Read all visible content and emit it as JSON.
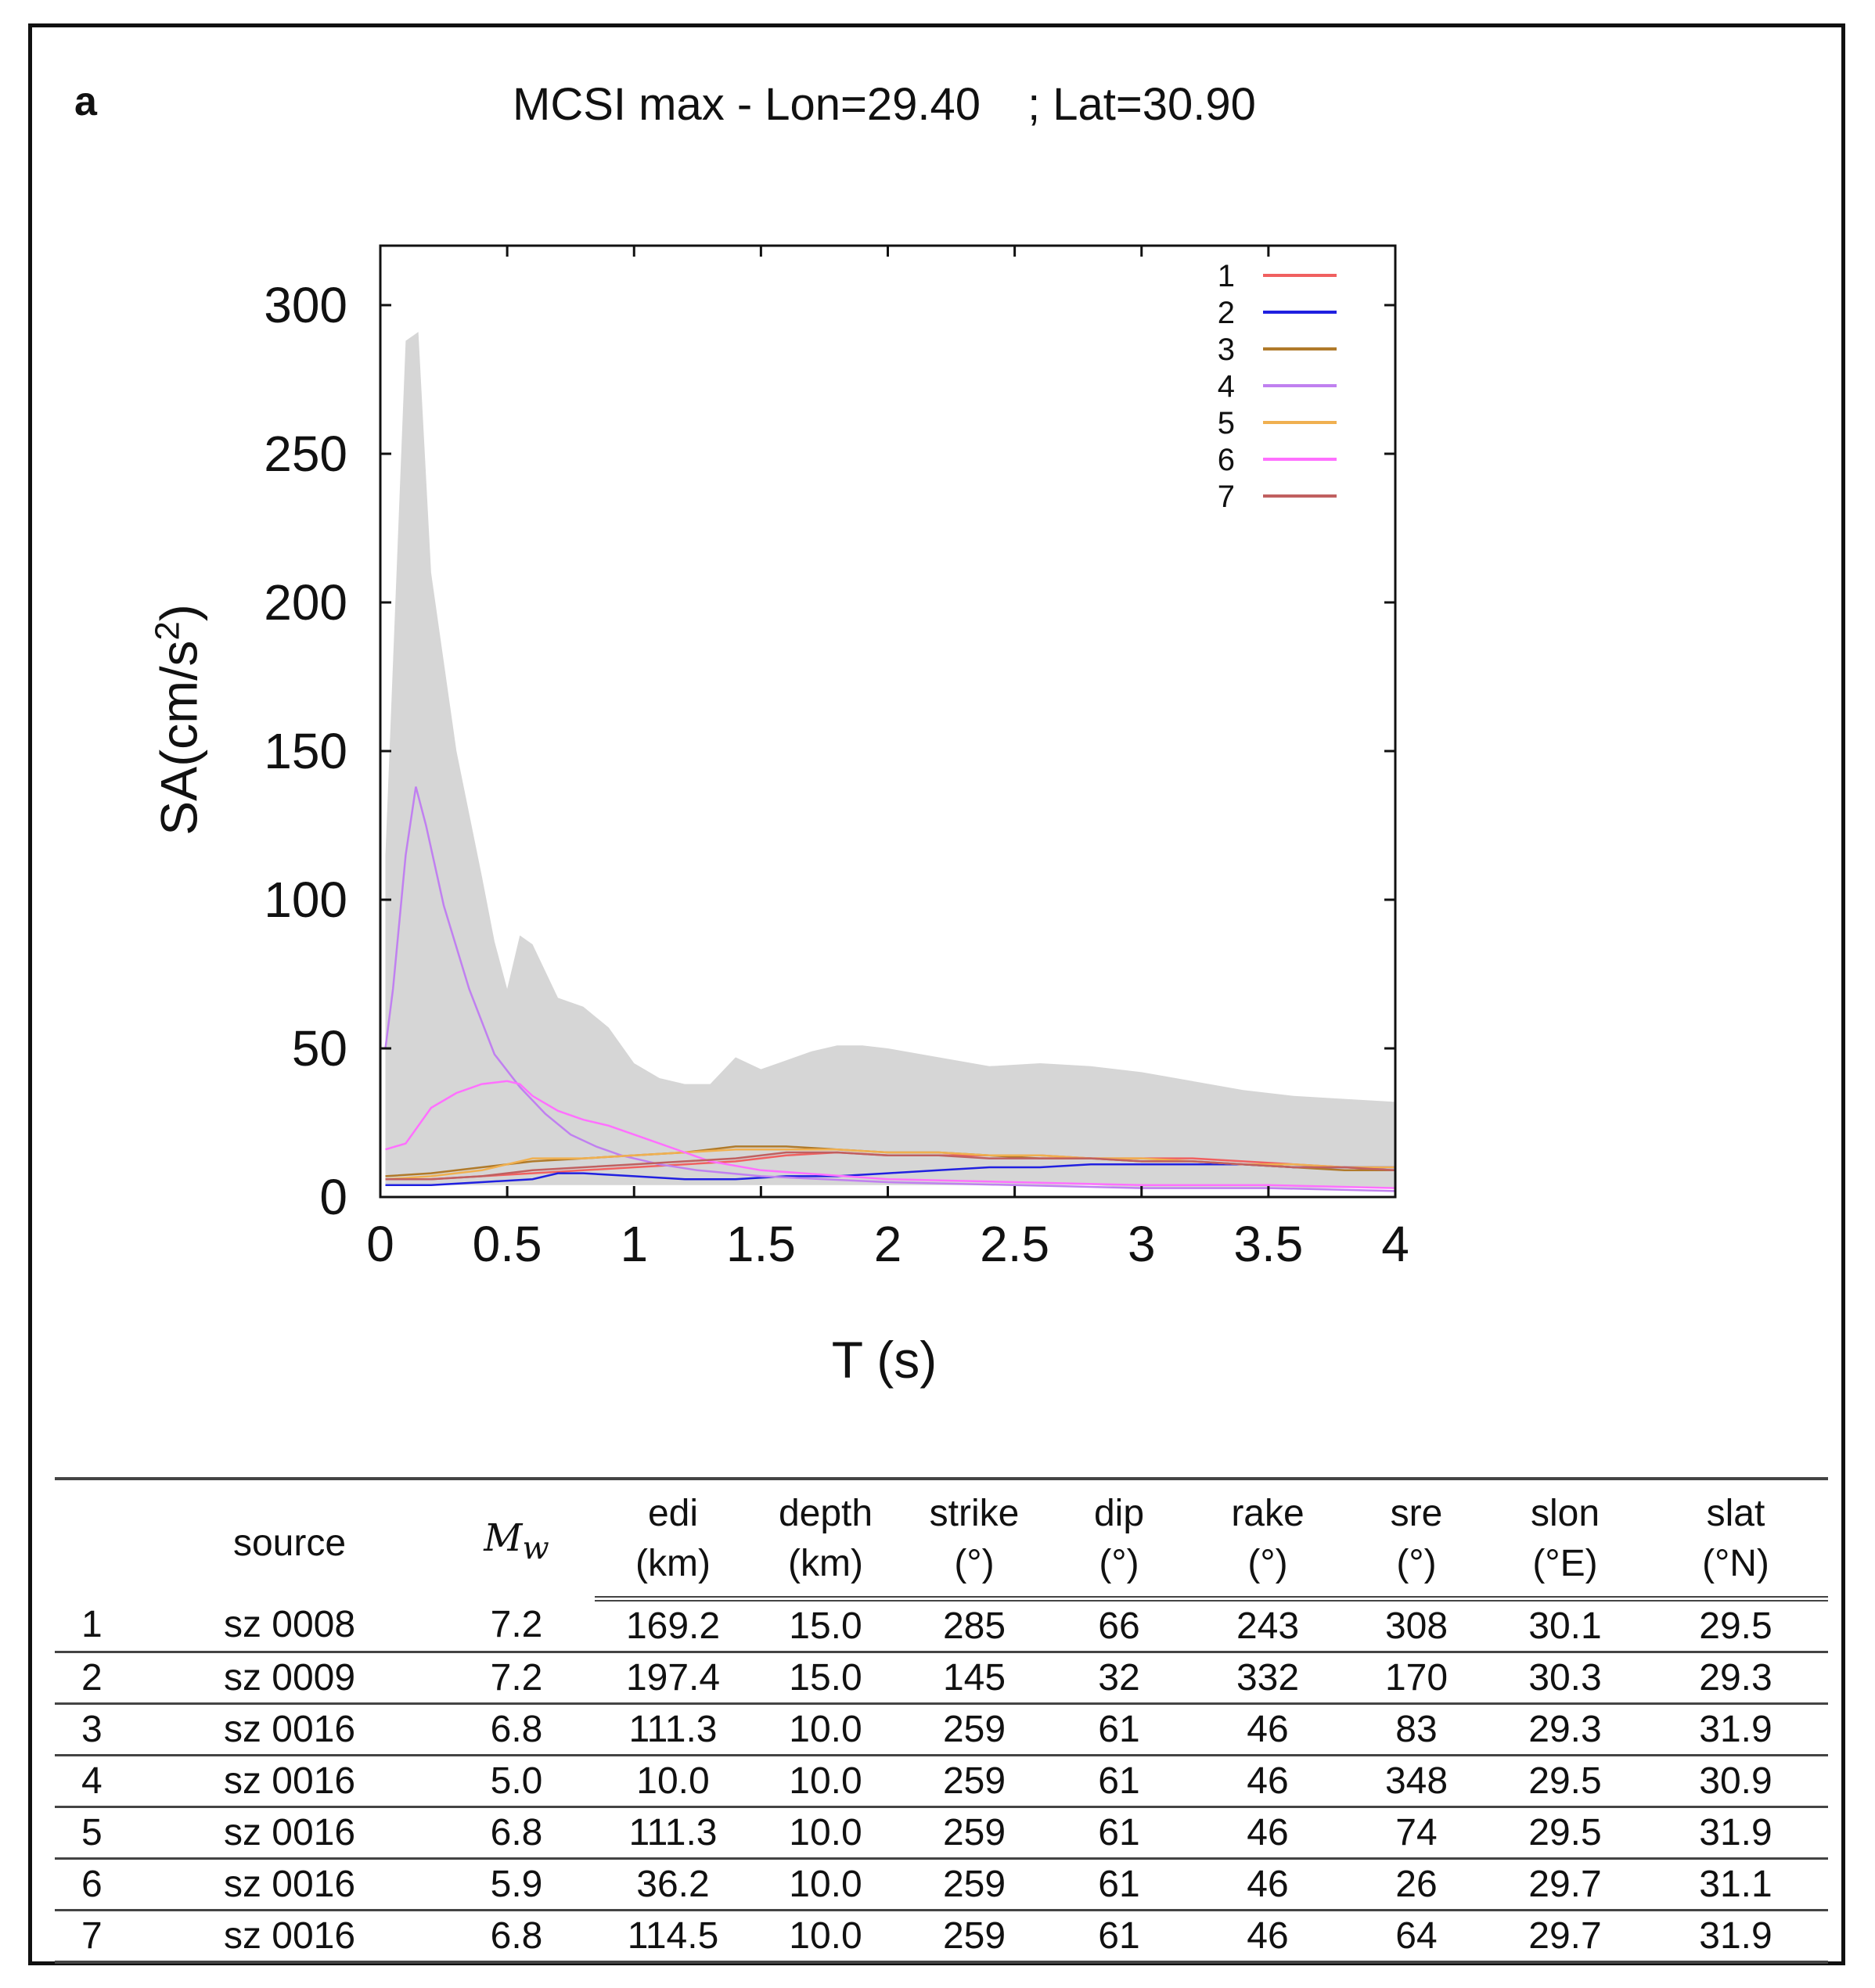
{
  "figure": {
    "panel_label": "a",
    "title_left": "MCSI max - Lon=29.40",
    "title_right": "; Lat=30.90"
  },
  "colors": {
    "envelope": "#d6d6d6",
    "series": [
      "#f06060",
      "#2020e0",
      "#b07a2a",
      "#c080f0",
      "#f0b050",
      "#ff70ff",
      "#c06060"
    ]
  },
  "chart_data": {
    "type": "line",
    "title": "MCSI max - Lon=29.40 ; Lat=30.90",
    "xlabel": "T (s)",
    "ylabel_main": "SA(cm/s",
    "ylabel_sup": "2",
    "ylabel_end": ")",
    "xlim": [
      0,
      4
    ],
    "ylim": [
      0,
      320
    ],
    "xticks": [
      0,
      0.5,
      1,
      1.5,
      2,
      2.5,
      3,
      3.5,
      4
    ],
    "xtick_labels": [
      "0",
      "0.5",
      "1",
      "1.5",
      "2",
      "2.5",
      "3",
      "3.5",
      "4"
    ],
    "yticks": [
      0,
      50,
      100,
      150,
      200,
      250,
      300
    ],
    "ytick_labels": [
      "0",
      "50",
      "100",
      "150",
      "200",
      "250",
      "300"
    ],
    "legend_position": "top-right",
    "envelope": {
      "name": "range",
      "x": [
        0.02,
        0.1,
        0.15,
        0.2,
        0.3,
        0.4,
        0.45,
        0.5,
        0.55,
        0.6,
        0.7,
        0.8,
        0.9,
        1.0,
        1.1,
        1.2,
        1.3,
        1.4,
        1.5,
        1.6,
        1.7,
        1.8,
        1.9,
        2.0,
        2.2,
        2.4,
        2.6,
        2.8,
        3.0,
        3.2,
        3.4,
        3.6,
        3.8,
        4.0
      ],
      "upper": [
        115,
        288,
        291,
        210,
        150,
        108,
        86,
        70,
        88,
        85,
        67,
        64,
        57,
        45,
        40,
        38,
        38,
        47,
        43,
        46,
        49,
        51,
        51,
        50,
        47,
        44,
        45,
        44,
        42,
        39,
        36,
        34,
        33,
        32
      ],
      "lower": [
        4,
        4,
        4,
        4,
        4,
        4,
        4,
        4,
        4,
        4,
        4,
        4,
        4,
        4,
        4,
        4,
        4,
        4,
        4,
        4,
        4,
        4,
        4,
        4,
        4,
        4,
        4,
        4,
        3,
        3,
        3,
        3,
        3,
        3
      ]
    },
    "series": [
      {
        "name": "1",
        "x": [
          0.02,
          0.2,
          0.4,
          0.6,
          0.8,
          1.0,
          1.2,
          1.4,
          1.6,
          1.8,
          2.0,
          2.2,
          2.4,
          2.6,
          2.8,
          3.0,
          3.2,
          3.4,
          3.6,
          3.8,
          4.0
        ],
        "values": [
          6,
          6,
          7,
          8,
          9,
          10,
          11,
          12,
          14,
          15,
          14,
          14,
          14,
          14,
          13,
          13,
          13,
          12,
          11,
          10,
          9
        ]
      },
      {
        "name": "2",
        "x": [
          0.02,
          0.2,
          0.4,
          0.6,
          0.7,
          0.8,
          1.0,
          1.2,
          1.4,
          1.6,
          1.8,
          2.0,
          2.2,
          2.4,
          2.6,
          2.8,
          3.0,
          3.2,
          3.4,
          3.6,
          3.8,
          4.0
        ],
        "values": [
          4,
          4,
          5,
          6,
          8,
          8,
          7,
          6,
          6,
          7,
          7,
          8,
          9,
          10,
          10,
          11,
          11,
          11,
          11,
          10,
          10,
          10
        ]
      },
      {
        "name": "3",
        "x": [
          0.02,
          0.2,
          0.4,
          0.6,
          0.8,
          1.0,
          1.2,
          1.4,
          1.6,
          1.8,
          2.0,
          2.2,
          2.4,
          2.6,
          2.8,
          3.0,
          3.2,
          3.4,
          3.6,
          3.8,
          4.0
        ],
        "values": [
          7,
          8,
          10,
          12,
          13,
          14,
          15,
          17,
          17,
          16,
          15,
          15,
          14,
          13,
          13,
          12,
          12,
          11,
          10,
          9,
          9
        ]
      },
      {
        "name": "4",
        "x": [
          0.02,
          0.05,
          0.1,
          0.14,
          0.18,
          0.25,
          0.35,
          0.45,
          0.55,
          0.65,
          0.75,
          0.85,
          0.95,
          1.1,
          1.25,
          1.5,
          2.0,
          2.5,
          3.0,
          3.5,
          4.0
        ],
        "values": [
          50,
          70,
          115,
          138,
          125,
          98,
          70,
          48,
          37,
          28,
          21,
          17,
          14,
          11,
          9,
          7,
          5,
          4,
          3,
          3,
          2
        ]
      },
      {
        "name": "5",
        "x": [
          0.02,
          0.2,
          0.4,
          0.6,
          0.8,
          1.0,
          1.2,
          1.4,
          1.6,
          1.8,
          2.0,
          2.2,
          2.4,
          2.6,
          2.8,
          3.0,
          3.2,
          3.4,
          3.6,
          3.8,
          4.0
        ],
        "values": [
          6,
          7,
          9,
          13,
          13,
          14,
          15,
          16,
          16,
          16,
          15,
          15,
          14,
          14,
          13,
          13,
          12,
          11,
          11,
          10,
          10
        ]
      },
      {
        "name": "6",
        "x": [
          0.02,
          0.1,
          0.2,
          0.3,
          0.4,
          0.5,
          0.55,
          0.6,
          0.7,
          0.8,
          0.9,
          1.0,
          1.1,
          1.2,
          1.3,
          1.5,
          2.0,
          2.5,
          3.0,
          3.5,
          4.0
        ],
        "values": [
          16,
          18,
          30,
          35,
          38,
          39,
          38,
          34,
          29,
          26,
          24,
          21,
          18,
          15,
          12,
          9,
          6,
          5,
          4,
          4,
          3
        ]
      },
      {
        "name": "7",
        "x": [
          0.02,
          0.2,
          0.4,
          0.6,
          0.8,
          1.0,
          1.2,
          1.4,
          1.6,
          1.8,
          2.0,
          2.2,
          2.4,
          2.6,
          2.8,
          3.0,
          3.2,
          3.4,
          3.6,
          3.8,
          4.0
        ],
        "values": [
          6,
          6,
          7,
          9,
          10,
          11,
          12,
          13,
          15,
          15,
          14,
          14,
          13,
          13,
          13,
          12,
          12,
          11,
          10,
          10,
          9
        ]
      }
    ]
  },
  "table": {
    "headers_line1": [
      "",
      "source",
      "M",
      "edi",
      "depth",
      "strike",
      "dip",
      "rake",
      "sre",
      "slon",
      "slat"
    ],
    "mw_subscript": "w",
    "headers_line2": [
      "",
      "",
      "",
      "(km)",
      "(km)",
      "(°)",
      "(°)",
      "(°)",
      "(°)",
      "(°E)",
      "(°N)"
    ],
    "rows": [
      [
        "1",
        "sz 0008",
        "7.2",
        "169.2",
        "15.0",
        "285",
        "66",
        "243",
        "308",
        "30.1",
        "29.5"
      ],
      [
        "2",
        "sz 0009",
        "7.2",
        "197.4",
        "15.0",
        "145",
        "32",
        "332",
        "170",
        "30.3",
        "29.3"
      ],
      [
        "3",
        "sz 0016",
        "6.8",
        "111.3",
        "10.0",
        "259",
        "61",
        "46",
        "83",
        "29.3",
        "31.9"
      ],
      [
        "4",
        "sz 0016",
        "5.0",
        "10.0",
        "10.0",
        "259",
        "61",
        "46",
        "348",
        "29.5",
        "30.9"
      ],
      [
        "5",
        "sz 0016",
        "6.8",
        "111.3",
        "10.0",
        "259",
        "61",
        "46",
        "74",
        "29.5",
        "31.9"
      ],
      [
        "6",
        "sz 0016",
        "5.9",
        "36.2",
        "10.0",
        "259",
        "61",
        "46",
        "26",
        "29.7",
        "31.1"
      ],
      [
        "7",
        "sz 0016",
        "6.8",
        "114.5",
        "10.0",
        "259",
        "61",
        "46",
        "64",
        "29.7",
        "31.9"
      ]
    ]
  }
}
